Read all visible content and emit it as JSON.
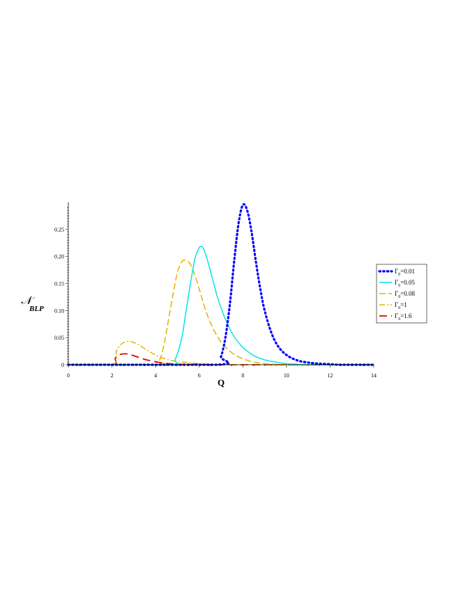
{
  "chart_data": {
    "type": "line",
    "xlabel": "Q",
    "ylabel": "𝒩",
    "ylabel_sub": "BLP",
    "xlim": [
      0,
      14
    ],
    "ylim": [
      0,
      0.3
    ],
    "xticks": [
      0,
      2,
      4,
      6,
      8,
      10,
      12,
      14
    ],
    "yticks": [
      0,
      0.05,
      0.1,
      0.15,
      0.2,
      0.25
    ],
    "ytick_labels": [
      "0",
      "0.05",
      "0.10",
      "0.15",
      "0.20",
      "0.25"
    ],
    "grid": false,
    "legend_position": "right",
    "series": [
      {
        "name": "Γ₀=0.01",
        "legend_symbol": "Γ",
        "legend_sub": "0",
        "legend_value": "=0.01",
        "color": "#0000ff",
        "style": "dotted",
        "x": [
          0,
          6.8,
          7.0,
          7.2,
          7.4,
          7.6,
          7.8,
          8.0,
          8.2,
          8.4,
          8.6,
          8.8,
          9.0,
          9.3,
          9.6,
          10.0,
          10.5,
          11.0,
          11.5,
          12.0,
          12.5,
          14
        ],
        "y": [
          0,
          0,
          0.015,
          0.05,
          0.11,
          0.19,
          0.26,
          0.295,
          0.285,
          0.245,
          0.19,
          0.14,
          0.1,
          0.06,
          0.035,
          0.018,
          0.008,
          0.004,
          0.002,
          0.001,
          0,
          0
        ]
      },
      {
        "name": "Γ₀=0.05",
        "legend_symbol": "Γ",
        "legend_sub": "0",
        "legend_value": "=0.05",
        "color": "#00e5e5",
        "style": "solid",
        "x": [
          0,
          4.6,
          4.9,
          5.2,
          5.4,
          5.6,
          5.8,
          6.0,
          6.1,
          6.2,
          6.4,
          6.6,
          6.8,
          7.0,
          7.3,
          7.6,
          8.0,
          8.5,
          9.0,
          9.5,
          10.0,
          10.5,
          11,
          14
        ],
        "y": [
          0,
          0,
          0.01,
          0.05,
          0.1,
          0.15,
          0.195,
          0.216,
          0.218,
          0.214,
          0.19,
          0.16,
          0.13,
          0.105,
          0.075,
          0.052,
          0.032,
          0.017,
          0.009,
          0.005,
          0.002,
          0.001,
          0,
          0
        ]
      },
      {
        "name": "Γ₀=0.08",
        "legend_symbol": "Γ",
        "legend_sub": "0",
        "legend_value": "=0.08",
        "color": "#e5b000",
        "style": "dashed",
        "x": [
          0,
          4.0,
          4.2,
          4.4,
          4.6,
          4.8,
          5.0,
          5.2,
          5.4,
          5.6,
          5.8,
          6.0,
          6.3,
          6.6,
          7.0,
          7.5,
          8.0,
          8.5,
          9.0,
          9.5,
          10,
          14
        ],
        "y": [
          0,
          0,
          0.01,
          0.04,
          0.085,
          0.13,
          0.17,
          0.19,
          0.193,
          0.185,
          0.165,
          0.14,
          0.1,
          0.07,
          0.042,
          0.022,
          0.011,
          0.005,
          0.002,
          0.001,
          0,
          0
        ]
      },
      {
        "name": "Γ₀=1",
        "legend_symbol": "Γ",
        "legend_sub": "0",
        "legend_value": "=1",
        "color": "#e5b000",
        "style": "dashdot",
        "x": [
          0,
          2.0,
          2.2,
          2.4,
          2.6,
          2.8,
          3.0,
          3.3,
          3.6,
          4.0,
          4.5,
          5.0,
          5.5,
          6.0,
          6.5,
          7.0,
          7.5,
          8.0,
          14
        ],
        "y": [
          0,
          0,
          0.025,
          0.037,
          0.042,
          0.043,
          0.041,
          0.035,
          0.027,
          0.018,
          0.01,
          0.006,
          0.004,
          0.002,
          0.001,
          0.0005,
          0.0002,
          0,
          0
        ]
      },
      {
        "name": "Γ₀=1.6",
        "legend_symbol": "Γ",
        "legend_sub": "0",
        "legend_value": "=1.6",
        "color": "#e00000",
        "style": "longdash",
        "x": [
          0,
          2.0,
          2.15,
          2.3,
          2.5,
          2.7,
          2.9,
          3.2,
          3.5,
          3.8,
          4.2,
          4.6,
          5.0,
          5.5,
          6.0,
          6.5,
          7.0,
          14
        ],
        "y": [
          0,
          0,
          0.012,
          0.018,
          0.02,
          0.02,
          0.018,
          0.014,
          0.01,
          0.007,
          0.004,
          0.002,
          0.001,
          0.0005,
          0.0002,
          0.0001,
          0,
          0
        ]
      }
    ]
  }
}
